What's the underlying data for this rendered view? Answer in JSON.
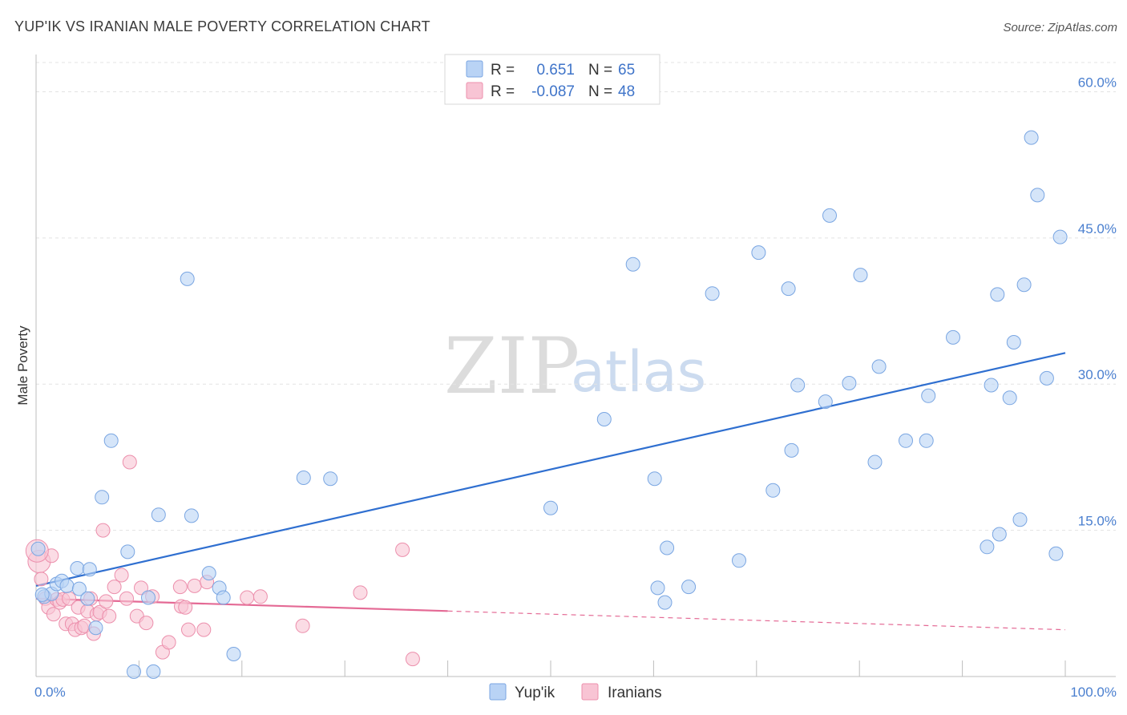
{
  "title": "YUP'IK VS IRANIAN MALE POVERTY CORRELATION CHART",
  "source": "Source: ZipAtlas.com",
  "watermark": {
    "zip": "ZIP",
    "atlas": "atlas"
  },
  "colors": {
    "yupik_fill": "#b9d3f5",
    "yupik_stroke": "#7aa6e2",
    "yupik_line": "#2f6fd0",
    "iranian_fill": "#f8c4d4",
    "iranian_stroke": "#ec8fac",
    "iranian_line": "#e46a95",
    "tick_label": "#4a7fcf",
    "grid": "#e3e3e3"
  },
  "legend_top": {
    "rows": [
      {
        "r_label": "R =",
        "r_value": "0.651",
        "n_label": "N =",
        "n_value": "65"
      },
      {
        "r_label": "R =",
        "r_value": "-0.087",
        "n_label": "N =",
        "n_value": "48"
      }
    ]
  },
  "legend_bottom": [
    "Yup'ik",
    "Iranians"
  ],
  "chart_data": {
    "type": "scatter",
    "title": "YUP'IK VS IRANIAN MALE POVERTY CORRELATION CHART",
    "xlabel": "",
    "ylabel": "Male Poverty",
    "xlim": [
      0,
      100
    ],
    "ylim": [
      0,
      63
    ],
    "x_tick_labels": [
      {
        "value": 0,
        "label": "0.0%"
      },
      {
        "value": 100,
        "label": "100.0%"
      }
    ],
    "y_ticks": [
      {
        "value": 15,
        "label": "15.0%"
      },
      {
        "value": 30,
        "label": "30.0%"
      },
      {
        "value": 45,
        "label": "45.0%"
      },
      {
        "value": 60,
        "label": "60.0%"
      }
    ],
    "x_minor_ticks": [
      0,
      10,
      20,
      30,
      40,
      50,
      60,
      70,
      80,
      90,
      100
    ],
    "grid": true,
    "legend_position": "top-center",
    "series": [
      {
        "name": "Yup'ik",
        "r": 0.651,
        "n": 65,
        "trend": {
          "x": [
            0,
            100
          ],
          "y": [
            9.3,
            33.2
          ],
          "dashed_from": null
        },
        "points": [
          [
            0.2,
            13.1
          ],
          [
            0.8,
            8.2
          ],
          [
            1.5,
            8.5
          ],
          [
            2.0,
            9.5
          ],
          [
            2.5,
            9.8
          ],
          [
            3.0,
            9.3
          ],
          [
            4.0,
            11.1
          ],
          [
            4.2,
            9.0
          ],
          [
            5.0,
            8.0
          ],
          [
            5.2,
            11.0
          ],
          [
            5.8,
            5.0
          ],
          [
            6.4,
            18.4
          ],
          [
            7.3,
            24.2
          ],
          [
            8.9,
            12.8
          ],
          [
            9.5,
            0.5
          ],
          [
            10.9,
            8.1
          ],
          [
            11.4,
            0.5
          ],
          [
            11.9,
            16.6
          ],
          [
            14.7,
            40.8
          ],
          [
            15.1,
            16.5
          ],
          [
            16.8,
            10.6
          ],
          [
            17.8,
            9.1
          ],
          [
            18.2,
            8.1
          ],
          [
            19.2,
            2.3
          ],
          [
            26.0,
            20.4
          ],
          [
            28.6,
            20.3
          ],
          [
            50.0,
            17.3
          ],
          [
            55.2,
            26.4
          ],
          [
            58.0,
            42.3
          ],
          [
            60.1,
            20.3
          ],
          [
            60.4,
            9.1
          ],
          [
            61.1,
            7.6
          ],
          [
            61.3,
            13.2
          ],
          [
            63.4,
            9.2
          ],
          [
            65.7,
            39.3
          ],
          [
            68.3,
            11.9
          ],
          [
            70.2,
            43.5
          ],
          [
            71.6,
            19.1
          ],
          [
            73.1,
            39.8
          ],
          [
            73.4,
            23.2
          ],
          [
            74.0,
            29.9
          ],
          [
            76.7,
            28.2
          ],
          [
            77.1,
            47.3
          ],
          [
            79.0,
            30.1
          ],
          [
            80.1,
            41.2
          ],
          [
            81.5,
            22.0
          ],
          [
            81.9,
            31.8
          ],
          [
            84.5,
            24.2
          ],
          [
            86.5,
            24.2
          ],
          [
            86.7,
            28.8
          ],
          [
            89.1,
            34.8
          ],
          [
            92.4,
            13.3
          ],
          [
            92.8,
            29.9
          ],
          [
            93.4,
            39.2
          ],
          [
            93.6,
            14.6
          ],
          [
            94.6,
            28.6
          ],
          [
            95.0,
            34.3
          ],
          [
            95.6,
            16.1
          ],
          [
            96.0,
            40.2
          ],
          [
            96.7,
            55.3
          ],
          [
            97.3,
            49.4
          ],
          [
            98.2,
            30.6
          ],
          [
            99.1,
            12.6
          ],
          [
            99.5,
            45.1
          ],
          [
            0.6,
            8.4
          ]
        ]
      },
      {
        "name": "Iranians",
        "r": -0.087,
        "n": 48,
        "trend": {
          "x": [
            0,
            100
          ],
          "y": [
            8.0,
            4.8
          ],
          "dashed_from": 40
        },
        "points": [
          [
            0.3,
            11.8
          ],
          [
            0.5,
            10.0
          ],
          [
            0.9,
            8.0
          ],
          [
            1.2,
            7.1
          ],
          [
            1.5,
            12.4
          ],
          [
            1.7,
            6.4
          ],
          [
            2.0,
            7.9
          ],
          [
            2.3,
            7.6
          ],
          [
            2.6,
            7.9
          ],
          [
            2.9,
            5.4
          ],
          [
            3.2,
            8.0
          ],
          [
            3.5,
            5.4
          ],
          [
            3.8,
            4.8
          ],
          [
            4.1,
            7.1
          ],
          [
            4.4,
            5.0
          ],
          [
            4.7,
            5.2
          ],
          [
            5.0,
            6.7
          ],
          [
            5.3,
            8.0
          ],
          [
            5.6,
            4.4
          ],
          [
            5.9,
            6.4
          ],
          [
            6.2,
            6.6
          ],
          [
            6.5,
            15.0
          ],
          [
            6.8,
            7.7
          ],
          [
            7.1,
            6.2
          ],
          [
            7.6,
            9.2
          ],
          [
            8.3,
            10.4
          ],
          [
            8.8,
            8.0
          ],
          [
            9.1,
            22.0
          ],
          [
            9.8,
            6.2
          ],
          [
            10.2,
            9.1
          ],
          [
            10.7,
            5.5
          ],
          [
            11.3,
            8.2
          ],
          [
            12.3,
            2.5
          ],
          [
            12.9,
            3.5
          ],
          [
            14.0,
            9.2
          ],
          [
            14.1,
            7.2
          ],
          [
            14.5,
            7.1
          ],
          [
            14.8,
            4.8
          ],
          [
            15.4,
            9.3
          ],
          [
            16.3,
            4.8
          ],
          [
            16.6,
            9.7
          ],
          [
            20.5,
            8.1
          ],
          [
            21.8,
            8.2
          ],
          [
            25.9,
            5.2
          ],
          [
            31.5,
            8.6
          ],
          [
            35.6,
            13.0
          ],
          [
            36.6,
            1.8
          ],
          [
            0.1,
            12.9
          ]
        ]
      }
    ]
  }
}
